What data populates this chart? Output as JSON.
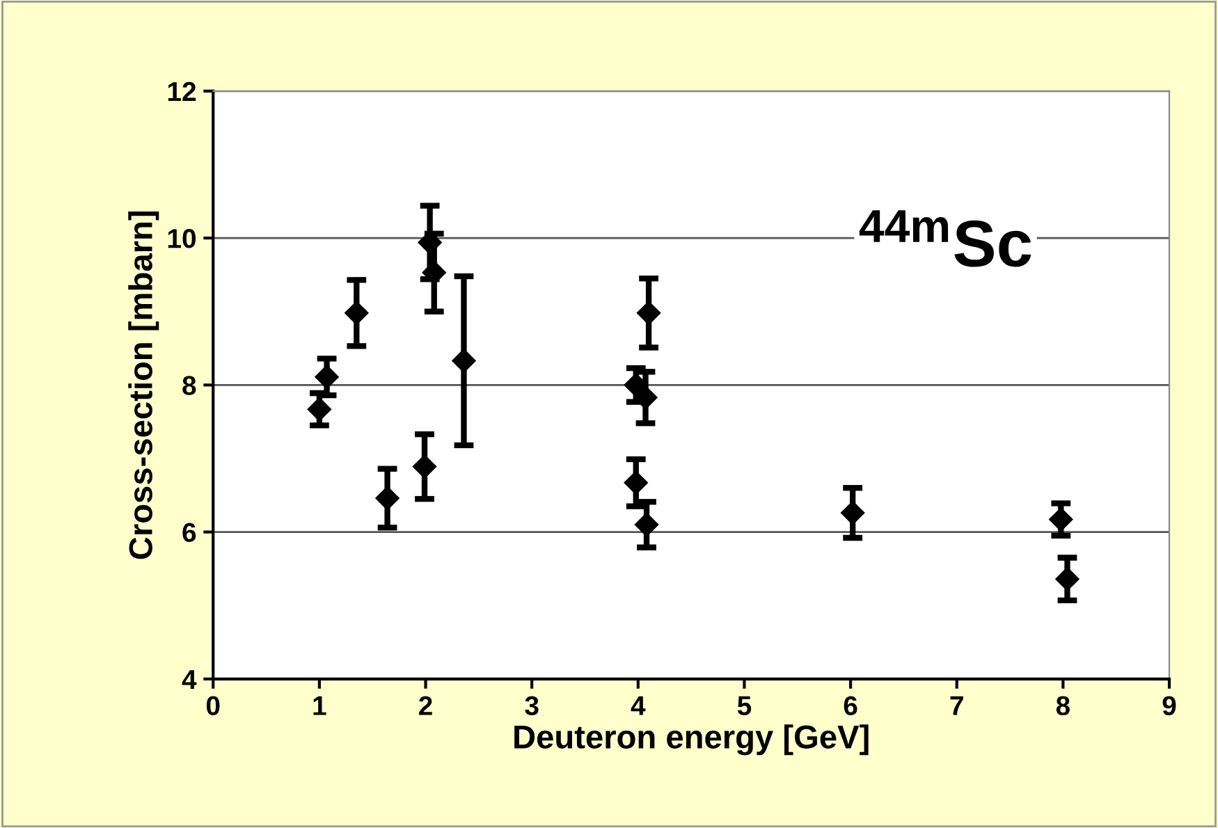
{
  "chart_data": {
    "type": "scatter",
    "xlabel": "Deuteron energy [GeV]",
    "ylabel": "Cross-section [mbarn]",
    "annotations": [
      "$^{44m}$Sc"
    ],
    "x": [
      1.0,
      1.07,
      1.35,
      1.64,
      1.99,
      2.04,
      2.08,
      2.36,
      3.98,
      4.07,
      4.1,
      3.98,
      4.08,
      6.02,
      7.98,
      8.04
    ],
    "values": [
      7.67,
      8.11,
      8.98,
      6.46,
      6.89,
      9.94,
      9.53,
      8.33,
      8.0,
      7.83,
      8.98,
      6.67,
      6.1,
      6.26,
      6.17,
      5.36
    ],
    "errors": [
      0.22,
      0.25,
      0.45,
      0.4,
      0.44,
      0.5,
      0.53,
      1.15,
      0.23,
      0.35,
      0.47,
      0.32,
      0.31,
      0.34,
      0.22,
      0.29
    ],
    "color": "#000000",
    "marker": "diamond",
    "xlim": [
      0,
      9
    ],
    "xticks": [
      0,
      1,
      2,
      3,
      4,
      5,
      6,
      7,
      8,
      9
    ],
    "ylim": [
      4,
      12
    ],
    "yticks": [
      4,
      6,
      8,
      10,
      12
    ],
    "grid": "y",
    "legend": false
  }
}
